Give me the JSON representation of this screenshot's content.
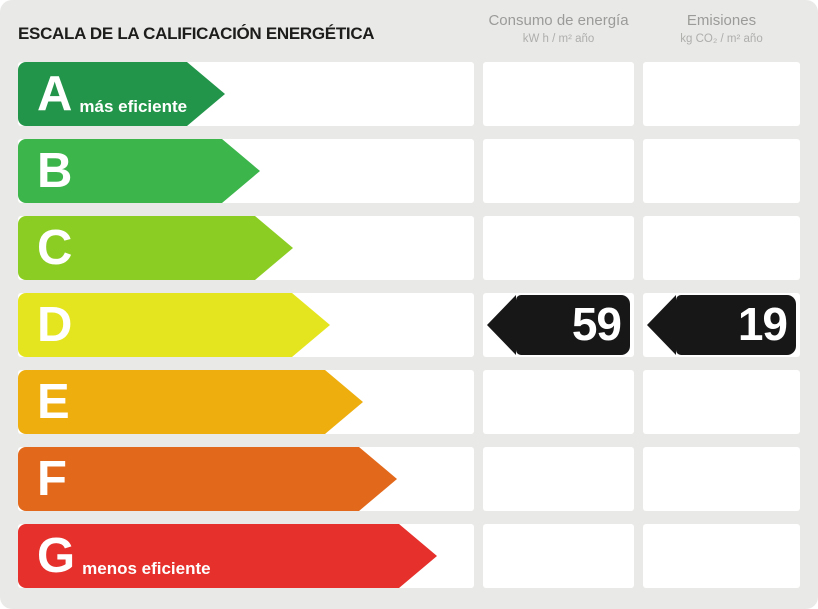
{
  "title": "ESCALA DE LA CALIFICACIÓN ENERGÉTICA",
  "columns": {
    "consumo": {
      "label": "Consumo de energía",
      "unit": "kW h / m² año"
    },
    "emisiones": {
      "label": "Emisiones",
      "unit": "kg CO₂ / m² año"
    }
  },
  "ratings": [
    {
      "letter": "A",
      "note": "más eficiente",
      "color": "#22954a",
      "length": 207
    },
    {
      "letter": "B",
      "note": "",
      "color": "#3cb54b",
      "length": 242
    },
    {
      "letter": "C",
      "note": "",
      "color": "#8ccd23",
      "length": 275
    },
    {
      "letter": "D",
      "note": "",
      "color": "#e5e51f",
      "length": 312
    },
    {
      "letter": "E",
      "note": "",
      "color": "#eeae0e",
      "length": 345
    },
    {
      "letter": "F",
      "note": "",
      "color": "#e2691b",
      "length": 379
    },
    {
      "letter": "G",
      "note": "menos eficiente",
      "color": "#e5302b",
      "length": 419
    }
  ],
  "current_rating": {
    "letter": "D",
    "consumo_value": "59",
    "emisiones_value": "19",
    "marker_color": "#171717"
  },
  "chart_data": {
    "type": "bar",
    "title": "ESCALA DE LA CALIFICACIÓN ENERGÉTICA",
    "categories": [
      "A",
      "B",
      "C",
      "D",
      "E",
      "F",
      "G"
    ],
    "values": [
      207,
      242,
      275,
      312,
      345,
      379,
      419
    ],
    "colors": [
      "#22954a",
      "#3cb54b",
      "#8ccd23",
      "#e5e51f",
      "#eeae0e",
      "#e2691b",
      "#e5302b"
    ],
    "annotations": [
      "A = más eficiente",
      "G = menos eficiente"
    ],
    "rating": "D",
    "consumo_kwh_m2_ano": 59,
    "emisiones_kgco2_m2_ano": 19,
    "xlabel": "",
    "ylabel": "",
    "legend_position": "none",
    "grid": false
  }
}
